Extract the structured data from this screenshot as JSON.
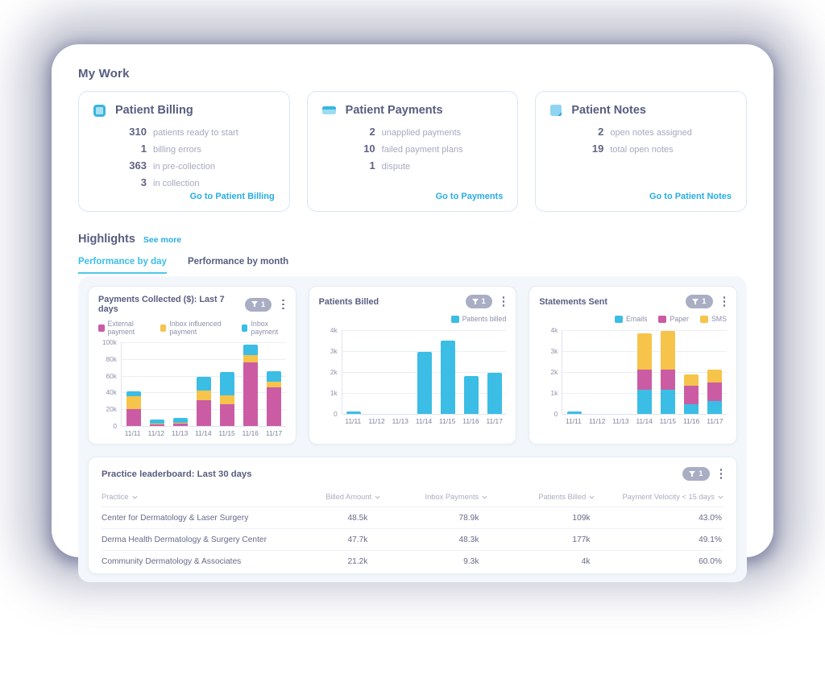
{
  "page": {
    "title": "My Work"
  },
  "cards": [
    {
      "title": "Patient Billing",
      "icon": "billing-icon",
      "stats": [
        {
          "value": "310",
          "label": "patients ready to start"
        },
        {
          "value": "1",
          "label": "billing errors"
        },
        {
          "value": "363",
          "label": "in pre-collection"
        },
        {
          "value": "3",
          "label": "in collection"
        }
      ],
      "link": "Go to Patient Billing"
    },
    {
      "title": "Patient Payments",
      "icon": "payments-icon",
      "stats": [
        {
          "value": "2",
          "label": "unapplied payments"
        },
        {
          "value": "10",
          "label": "failed payment plans"
        },
        {
          "value": "1",
          "label": "dispute"
        }
      ],
      "link": "Go to Payments"
    },
    {
      "title": "Patient Notes",
      "icon": "notes-icon",
      "stats": [
        {
          "value": "2",
          "label": "open notes assigned"
        },
        {
          "value": "19",
          "label": "total open notes"
        }
      ],
      "link": "Go to Patient Notes"
    }
  ],
  "highlights": {
    "title": "Highlights",
    "see_more": "See more",
    "tabs": [
      {
        "label": "Performance by day",
        "active": true
      },
      {
        "label": "Performance by month",
        "active": false
      }
    ]
  },
  "chart_data": [
    {
      "type": "bar",
      "stacked": true,
      "title": "Payments Collected ($): Last 7 days",
      "filter_count": "1",
      "categories": [
        "11/11",
        "11/12",
        "11/13",
        "11/14",
        "11/15",
        "11/16",
        "11/17"
      ],
      "series": [
        {
          "name": "External payment",
          "color": "#cb5ca4",
          "values": [
            20,
            2,
            2.5,
            30.5,
            26,
            76,
            46.5
          ]
        },
        {
          "name": "Inbox influenced payment",
          "color": "#f6c44a",
          "values": [
            15.5,
            1,
            1.5,
            12,
            11,
            8.5,
            6
          ]
        },
        {
          "name": "Inbox payment",
          "color": "#3bbde5",
          "values": [
            6,
            5,
            6,
            16,
            27,
            12.5,
            13
          ]
        }
      ],
      "unit": "thousands",
      "ylim": [
        0,
        100
      ],
      "yticks": [
        "100k",
        "80k",
        "60k",
        "40k",
        "20k",
        "0"
      ],
      "legend_position": "left",
      "grid": true,
      "xlabel": "",
      "ylabel": ""
    },
    {
      "type": "bar",
      "stacked": false,
      "title": "Patients Billed",
      "filter_count": "1",
      "categories": [
        "11/11",
        "11/12",
        "11/13",
        "11/14",
        "11/15",
        "11/16",
        "11/17"
      ],
      "series": [
        {
          "name": "Patients billed",
          "color": "#3bbde5",
          "values": [
            0.1,
            0,
            0,
            2.95,
            3.5,
            1.8,
            1.95
          ]
        }
      ],
      "unit": "thousands",
      "ylim": [
        0,
        4
      ],
      "yticks": [
        "4k",
        "3k",
        "2k",
        "1k",
        "0"
      ],
      "legend_position": "right",
      "grid": true,
      "xlabel": "",
      "ylabel": ""
    },
    {
      "type": "bar",
      "stacked": true,
      "title": "Statements Sent",
      "filter_count": "1",
      "categories": [
        "11/11",
        "11/12",
        "11/13",
        "11/14",
        "11/15",
        "11/16",
        "11/17"
      ],
      "series": [
        {
          "name": "Emails",
          "color": "#3bbde5",
          "values": [
            0.1,
            0,
            0,
            1.15,
            1.15,
            0.45,
            0.6
          ]
        },
        {
          "name": "Paper",
          "color": "#cb5ca4",
          "values": [
            0,
            0,
            0,
            0.95,
            0.95,
            0.9,
            0.9
          ]
        },
        {
          "name": "SMS",
          "color": "#f6c44a",
          "values": [
            0,
            0,
            0,
            1.75,
            1.85,
            0.55,
            0.6
          ]
        }
      ],
      "unit": "thousands",
      "ylim": [
        0,
        4
      ],
      "yticks": [
        "4k",
        "3k",
        "2k",
        "1k",
        "0"
      ],
      "legend_position": "right",
      "grid": true,
      "xlabel": "",
      "ylabel": ""
    }
  ],
  "leaderboard": {
    "title": "Practice leaderboard: Last 30 days",
    "filter_count": "1",
    "columns": [
      "Practice",
      "Billed Amount",
      "Inbox Payments",
      "Patients Billed",
      "Payment Velocity < 15 days"
    ],
    "rows": [
      [
        "Center for Dermatology & Laser Surgery",
        "48.5k",
        "78.9k",
        "109k",
        "43.0%"
      ],
      [
        "Derma Health Dermatology & Surgery Center",
        "47.7k",
        "48.3k",
        "177k",
        "49.1%"
      ],
      [
        "Community Dermatology & Associates",
        "21.2k",
        "9.3k",
        "4k",
        "60.0%"
      ]
    ]
  },
  "colors": {
    "accent_cyan": "#27ade6",
    "heading": "#585d80",
    "muted": "#a6aabe",
    "pill_bg": "#a9aec4",
    "panel_bg": "#f3f7fb",
    "pink": "#cb5ca4",
    "yellow": "#f6c44a",
    "cyan": "#3bbde5"
  }
}
